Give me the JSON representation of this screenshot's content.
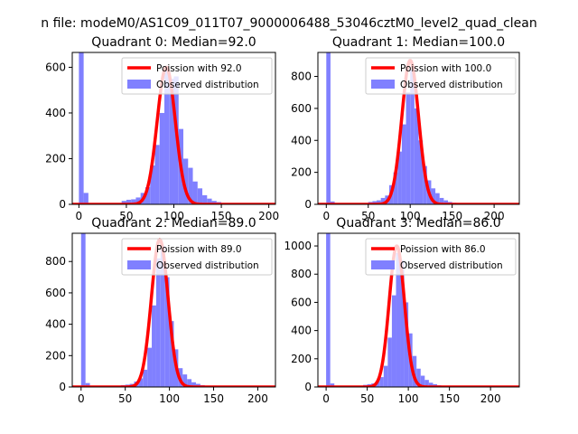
{
  "figure": {
    "suptitle": "n file: modeM0/AS1C09_011T07_9000006488_53046cztM0_level2_quad_clean"
  },
  "colors": {
    "hist": "#8080ff",
    "poisson": "#ff0000",
    "axis": "#000000",
    "background": "#ffffff"
  },
  "chart_data": [
    {
      "type": "bar",
      "title": "Quadrant 0: Median=92.0",
      "median": 92.0,
      "xlim": [
        -7,
        207
      ],
      "ylim": [
        0,
        665
      ],
      "xticks": [
        0,
        50,
        100,
        150,
        200
      ],
      "yticks": [
        0,
        200,
        400,
        600
      ],
      "bin_width": 5,
      "bins": [
        [
          0,
          665
        ],
        [
          5,
          50
        ],
        [
          45,
          15
        ],
        [
          50,
          20
        ],
        [
          55,
          22
        ],
        [
          60,
          30
        ],
        [
          65,
          50
        ],
        [
          70,
          75
        ],
        [
          75,
          170
        ],
        [
          80,
          260
        ],
        [
          85,
          400
        ],
        [
          90,
          600
        ],
        [
          95,
          550
        ],
        [
          100,
          560
        ],
        [
          105,
          330
        ],
        [
          110,
          200
        ],
        [
          115,
          160
        ],
        [
          120,
          100
        ],
        [
          125,
          70
        ],
        [
          130,
          40
        ],
        [
          135,
          25
        ],
        [
          140,
          15
        ],
        [
          145,
          10
        ],
        [
          150,
          6
        ],
        [
          155,
          4
        ]
      ],
      "poisson_peak": 600,
      "poisson_sigma": 9.59,
      "poisson_mean": 92.0,
      "legend": [
        "Poission with 92.0",
        "Observed distribution"
      ]
    },
    {
      "type": "bar",
      "title": "Quadrant 1: Median=100.0",
      "median": 100.0,
      "xlim": [
        -10,
        230
      ],
      "ylim": [
        0,
        950
      ],
      "xticks": [
        0,
        50,
        100,
        150,
        200
      ],
      "yticks": [
        0,
        200,
        400,
        600,
        800
      ],
      "bin_width": 5,
      "bins": [
        [
          0,
          950
        ],
        [
          5,
          18
        ],
        [
          50,
          15
        ],
        [
          55,
          20
        ],
        [
          60,
          25
        ],
        [
          65,
          40
        ],
        [
          70,
          55
        ],
        [
          75,
          120
        ],
        [
          80,
          200
        ],
        [
          85,
          330
        ],
        [
          90,
          500
        ],
        [
          95,
          700
        ],
        [
          100,
          840
        ],
        [
          105,
          600
        ],
        [
          110,
          400
        ],
        [
          115,
          240
        ],
        [
          120,
          150
        ],
        [
          125,
          100
        ],
        [
          130,
          70
        ],
        [
          135,
          40
        ],
        [
          140,
          25
        ],
        [
          145,
          15
        ],
        [
          150,
          10
        ],
        [
          155,
          8
        ],
        [
          160,
          5
        ]
      ],
      "poisson_peak": 900,
      "poisson_sigma": 10.0,
      "poisson_mean": 100.0,
      "legend": [
        "Poission with 100.0",
        "Observed distribution"
      ]
    },
    {
      "type": "bar",
      "title": "Quadrant 2: Median=89.0",
      "median": 89.0,
      "xlim": [
        -10,
        220
      ],
      "ylim": [
        0,
        980
      ],
      "xticks": [
        0,
        50,
        100,
        150,
        200
      ],
      "yticks": [
        0,
        200,
        400,
        600,
        800
      ],
      "bin_width": 5,
      "bins": [
        [
          0,
          980
        ],
        [
          5,
          25
        ],
        [
          45,
          12
        ],
        [
          50,
          15
        ],
        [
          55,
          20
        ],
        [
          60,
          35
        ],
        [
          65,
          55
        ],
        [
          70,
          110
        ],
        [
          75,
          250
        ],
        [
          80,
          520
        ],
        [
          85,
          820
        ],
        [
          90,
          900
        ],
        [
          95,
          700
        ],
        [
          100,
          420
        ],
        [
          105,
          240
        ],
        [
          110,
          120
        ],
        [
          115,
          80
        ],
        [
          120,
          50
        ],
        [
          125,
          30
        ],
        [
          130,
          20
        ],
        [
          135,
          12
        ],
        [
          140,
          8
        ],
        [
          145,
          5
        ]
      ],
      "poisson_peak": 940,
      "poisson_sigma": 9.43,
      "poisson_mean": 89.0,
      "legend": [
        "Poission with 89.0",
        "Observed distribution"
      ]
    },
    {
      "type": "bar",
      "title": "Quadrant 3: Median=86.0",
      "median": 86.0,
      "xlim": [
        -10,
        235
      ],
      "ylim": [
        0,
        1090
      ],
      "xticks": [
        0,
        50,
        100,
        150,
        200
      ],
      "yticks": [
        0,
        200,
        400,
        600,
        800,
        1000
      ],
      "bin_width": 5,
      "bins": [
        [
          0,
          1090
        ],
        [
          5,
          25
        ],
        [
          45,
          15
        ],
        [
          50,
          20
        ],
        [
          55,
          25
        ],
        [
          60,
          40
        ],
        [
          65,
          70
        ],
        [
          70,
          150
        ],
        [
          75,
          350
        ],
        [
          80,
          650
        ],
        [
          85,
          950
        ],
        [
          90,
          900
        ],
        [
          95,
          600
        ],
        [
          100,
          380
        ],
        [
          105,
          220
        ],
        [
          110,
          130
        ],
        [
          115,
          80
        ],
        [
          120,
          50
        ],
        [
          125,
          30
        ],
        [
          130,
          20
        ],
        [
          135,
          12
        ],
        [
          140,
          8
        ]
      ],
      "poisson_peak": 1000,
      "poisson_sigma": 9.27,
      "poisson_mean": 86.0,
      "legend": [
        "Poission with 86.0",
        "Observed distribution"
      ]
    }
  ]
}
